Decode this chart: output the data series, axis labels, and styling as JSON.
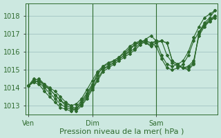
{
  "background_color": "#cce8e0",
  "plot_bg_color": "#cce8e0",
  "grid_color": "#99bbbb",
  "line_color": "#2d6a2d",
  "spine_color": "#2d6a2d",
  "xlabel": "Pression niveau de la mer( hPa )",
  "xlabel_fontsize": 8,
  "tick_fontsize": 7,
  "ylim": [
    1012.5,
    1018.7
  ],
  "yticks": [
    1013,
    1014,
    1015,
    1016,
    1017,
    1018
  ],
  "xtick_labels": [
    "Ven",
    "Dim",
    "Sam"
  ],
  "xtick_positions": [
    0,
    12,
    24
  ],
  "vline_positions": [
    0,
    12,
    24
  ],
  "total_points": 36,
  "series": [
    [
      1014.1,
      1014.4,
      1014.5,
      1014.2,
      1014.0,
      1013.8,
      1013.5,
      1013.2,
      1013.0,
      1012.8,
      1013.1,
      1013.5,
      1014.0,
      1014.5,
      1015.0,
      1015.2,
      1015.4,
      1015.6,
      1015.8,
      1016.0,
      1016.2,
      1016.5,
      1016.7,
      1016.9,
      1016.6,
      1015.8,
      1015.3,
      1015.2,
      1015.3,
      1015.5,
      1016.0,
      1016.8,
      1017.4,
      1017.9,
      1018.1,
      1018.3
    ],
    [
      1014.1,
      1014.3,
      1014.4,
      1014.1,
      1013.9,
      1013.6,
      1013.3,
      1013.0,
      1012.9,
      1012.7,
      1013.0,
      1013.4,
      1013.9,
      1014.4,
      1014.9,
      1015.1,
      1015.3,
      1015.5,
      1015.7,
      1015.9,
      1016.1,
      1016.4,
      1016.6,
      1016.5,
      1016.3,
      1015.6,
      1015.1,
      1015.0,
      1015.1,
      1015.3,
      1015.8,
      1016.6,
      1017.1,
      1017.6,
      1017.9,
      1018.3
    ],
    [
      1014.1,
      1014.3,
      1014.2,
      1013.8,
      1013.5,
      1013.2,
      1012.9,
      1012.8,
      1012.7,
      1012.8,
      1013.2,
      1013.6,
      1014.1,
      1014.7,
      1015.2,
      1015.4,
      1015.5,
      1015.7,
      1015.9,
      1016.2,
      1016.4,
      1016.6,
      1016.5,
      1016.3,
      1016.5,
      1016.6,
      1015.8,
      1015.4,
      1015.2,
      1015.1,
      1015.2,
      1015.5,
      1016.9,
      1017.4,
      1017.7,
      1018.0
    ],
    [
      1014.1,
      1014.4,
      1014.3,
      1014.0,
      1013.7,
      1013.4,
      1013.1,
      1012.9,
      1012.8,
      1012.9,
      1013.3,
      1013.7,
      1014.2,
      1014.8,
      1015.1,
      1015.2,
      1015.4,
      1015.6,
      1015.8,
      1016.1,
      1016.4,
      1016.5,
      1016.5,
      1016.4,
      1016.6,
      1016.6,
      1016.5,
      1015.5,
      1015.3,
      1015.1,
      1015.1,
      1015.4,
      1017.0,
      1017.5,
      1017.7,
      1017.9
    ],
    [
      1014.1,
      1014.5,
      1014.4,
      1014.2,
      1013.9,
      1013.6,
      1013.3,
      1013.1,
      1013.0,
      1013.1,
      1013.4,
      1013.9,
      1014.4,
      1014.9,
      1015.2,
      1015.3,
      1015.5,
      1015.7,
      1016.0,
      1016.3,
      1016.5,
      1016.6,
      1016.6,
      1016.5,
      1016.6,
      1016.6,
      1016.5,
      1015.5,
      1015.3,
      1015.1,
      1015.0,
      1015.3,
      1017.1,
      1017.5,
      1017.8,
      1018.0
    ]
  ],
  "marker": "D",
  "markersize": 2.0,
  "linewidth": 0.85
}
